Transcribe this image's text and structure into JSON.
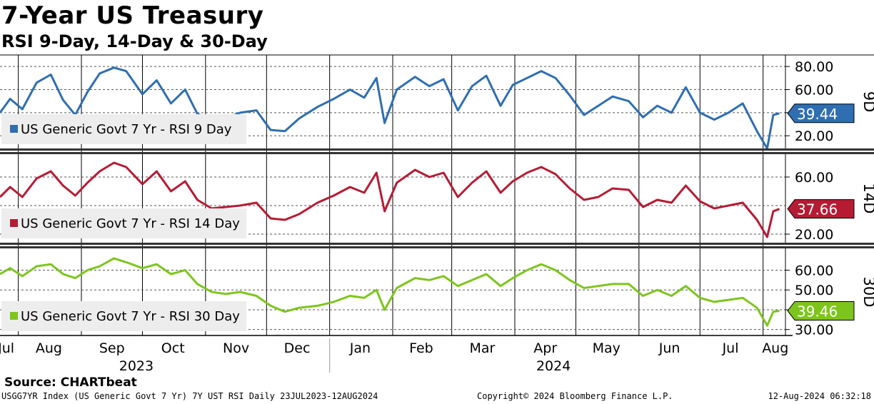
{
  "title": "7-Year US Treasury",
  "subtitle": "RSI 9-Day, 14-Day & 30-Day",
  "source": "Source: CHARTbeat",
  "footer": {
    "left": "USGG7YR Index (US Generic Govt 7 Yr) 7Y UST RSI  Daily 23JUL2023-12AUG2024",
    "center": "Copyright© 2024 Bloomberg Finance L.P.",
    "right": "12-Aug-2024 06:32:18"
  },
  "chart_data": {
    "type": "line",
    "x_range": [
      "2023-07-23",
      "2024-08-12"
    ],
    "x_month_labels": [
      "Jul",
      "Aug",
      "Sep",
      "Oct",
      "Nov",
      "Dec",
      "Jan",
      "Feb",
      "Mar",
      "Apr",
      "May",
      "Jun",
      "Jul",
      "Aug"
    ],
    "x_year_labels": [
      "2023",
      "2024"
    ],
    "grid": true,
    "legend_placement": "left",
    "panels": [
      {
        "tag": "9D",
        "legend": "US Generic Govt 7 Yr - RSI 9 Day",
        "color": "#2f6eb0",
        "last_value": "39.44",
        "ylim": [
          9,
          90
        ],
        "yticks": [
          "80.00",
          "60.00",
          "40.00",
          "20.00"
        ],
        "gridvals": [
          80,
          60,
          40,
          20
        ],
        "series": {
          "name": "US Generic Govt 7 Yr - RSI 9 Day",
          "x": [
            "2023-07-23",
            "2023-07-28",
            "2023-08-03",
            "2023-08-10",
            "2023-08-17",
            "2023-08-23",
            "2023-08-29",
            "2023-09-04",
            "2023-09-10",
            "2023-09-17",
            "2023-09-23",
            "2023-10-01",
            "2023-10-08",
            "2023-10-15",
            "2023-10-22",
            "2023-10-28",
            "2023-11-04",
            "2023-11-11",
            "2023-11-18",
            "2023-11-26",
            "2023-12-03",
            "2023-12-10",
            "2023-12-17",
            "2023-12-26",
            "2024-01-03",
            "2024-01-11",
            "2024-01-18",
            "2024-01-24",
            "2024-01-28",
            "2024-02-03",
            "2024-02-12",
            "2024-02-19",
            "2024-02-26",
            "2024-03-04",
            "2024-03-11",
            "2024-03-18",
            "2024-03-25",
            "2024-03-31",
            "2024-04-07",
            "2024-04-14",
            "2024-04-21",
            "2024-04-28",
            "2024-05-05",
            "2024-05-12",
            "2024-05-19",
            "2024-05-27",
            "2024-06-03",
            "2024-06-10",
            "2024-06-17",
            "2024-06-24",
            "2024-07-01",
            "2024-07-08",
            "2024-07-15",
            "2024-07-22",
            "2024-07-29",
            "2024-08-03",
            "2024-08-06",
            "2024-08-09"
          ],
          "values": [
            40,
            52,
            43,
            66,
            73,
            51,
            38,
            58,
            74,
            79,
            76,
            56,
            68,
            48,
            60,
            39,
            34,
            35,
            40,
            42,
            25,
            24,
            35,
            45,
            52,
            60,
            53,
            70,
            31,
            60,
            71,
            63,
            69,
            42,
            63,
            72,
            46,
            64,
            70,
            76,
            70,
            55,
            38,
            46,
            54,
            50,
            36,
            46,
            40,
            62,
            40,
            34,
            40,
            48,
            24,
            9,
            38,
            39.44
          ]
        }
      },
      {
        "tag": "14D",
        "legend": "US Generic Govt 7 Yr - RSI 14 Day",
        "color": "#b61b33",
        "last_value": "37.66",
        "ylim": [
          14,
          76
        ],
        "yticks": [
          "60.00",
          "20.00"
        ],
        "gridvals": [
          60,
          40,
          20
        ],
        "series": {
          "name": "US Generic Govt 7 Yr - RSI 14 Day",
          "x": [
            "2023-07-23",
            "2023-07-28",
            "2023-08-03",
            "2023-08-10",
            "2023-08-17",
            "2023-08-23",
            "2023-08-29",
            "2023-09-04",
            "2023-09-10",
            "2023-09-17",
            "2023-09-23",
            "2023-10-01",
            "2023-10-08",
            "2023-10-15",
            "2023-10-22",
            "2023-10-28",
            "2023-11-04",
            "2023-11-11",
            "2023-11-18",
            "2023-11-26",
            "2023-12-03",
            "2023-12-10",
            "2023-12-17",
            "2023-12-26",
            "2024-01-03",
            "2024-01-11",
            "2024-01-18",
            "2024-01-24",
            "2024-01-28",
            "2024-02-03",
            "2024-02-12",
            "2024-02-19",
            "2024-02-26",
            "2024-03-04",
            "2024-03-11",
            "2024-03-18",
            "2024-03-25",
            "2024-03-31",
            "2024-04-07",
            "2024-04-14",
            "2024-04-21",
            "2024-04-28",
            "2024-05-05",
            "2024-05-12",
            "2024-05-19",
            "2024-05-27",
            "2024-06-03",
            "2024-06-10",
            "2024-06-17",
            "2024-06-24",
            "2024-07-01",
            "2024-07-08",
            "2024-07-15",
            "2024-07-22",
            "2024-07-29",
            "2024-08-03",
            "2024-08-06",
            "2024-08-09"
          ],
          "values": [
            46,
            53,
            46,
            59,
            64,
            54,
            47,
            56,
            64,
            70,
            67,
            55,
            64,
            50,
            57,
            44,
            38,
            39,
            40,
            42,
            31,
            30,
            34,
            42,
            47,
            53,
            49,
            63,
            36,
            56,
            65,
            60,
            63,
            46,
            56,
            64,
            49,
            57,
            63,
            67,
            62,
            52,
            44,
            46,
            52,
            51,
            39,
            44,
            42,
            54,
            43,
            38,
            40,
            42,
            30,
            18,
            36,
            37.66
          ]
        }
      },
      {
        "tag": "30D",
        "legend": "US Generic Govt 7 Yr - RSI 30 Day",
        "color": "#7dc51c",
        "last_value": "39.46",
        "ylim": [
          27,
          71
        ],
        "yticks": [
          "60.00",
          "50.00",
          "40.00",
          "30.00"
        ],
        "gridvals": [
          60,
          50,
          40,
          30
        ],
        "series": {
          "name": "US Generic Govt 7 Yr - RSI 30 Day",
          "x": [
            "2023-07-23",
            "2023-07-28",
            "2023-08-03",
            "2023-08-10",
            "2023-08-17",
            "2023-08-23",
            "2023-08-29",
            "2023-09-04",
            "2023-09-10",
            "2023-09-17",
            "2023-09-23",
            "2023-10-01",
            "2023-10-08",
            "2023-10-15",
            "2023-10-22",
            "2023-10-28",
            "2023-11-04",
            "2023-11-11",
            "2023-11-18",
            "2023-11-26",
            "2023-12-03",
            "2023-12-10",
            "2023-12-17",
            "2023-12-26",
            "2024-01-03",
            "2024-01-11",
            "2024-01-18",
            "2024-01-24",
            "2024-01-28",
            "2024-02-03",
            "2024-02-12",
            "2024-02-19",
            "2024-02-26",
            "2024-03-04",
            "2024-03-11",
            "2024-03-18",
            "2024-03-25",
            "2024-03-31",
            "2024-04-07",
            "2024-04-14",
            "2024-04-21",
            "2024-04-28",
            "2024-05-05",
            "2024-05-12",
            "2024-05-19",
            "2024-05-27",
            "2024-06-03",
            "2024-06-10",
            "2024-06-17",
            "2024-06-24",
            "2024-07-01",
            "2024-07-08",
            "2024-07-15",
            "2024-07-22",
            "2024-07-29",
            "2024-08-03",
            "2024-08-06",
            "2024-08-09"
          ],
          "values": [
            58,
            61,
            57,
            62,
            63,
            58,
            56,
            60,
            62,
            66,
            64,
            61,
            63,
            58,
            60,
            53,
            49,
            48,
            49,
            47,
            42,
            39,
            41,
            42,
            44,
            47,
            46,
            50,
            40,
            51,
            56,
            55,
            57,
            52,
            55,
            58,
            52,
            56,
            60,
            63,
            60,
            55,
            51,
            52,
            53,
            53,
            47,
            50,
            47,
            52,
            46,
            44,
            45,
            46,
            41,
            32,
            39,
            39.46
          ]
        }
      }
    ]
  }
}
